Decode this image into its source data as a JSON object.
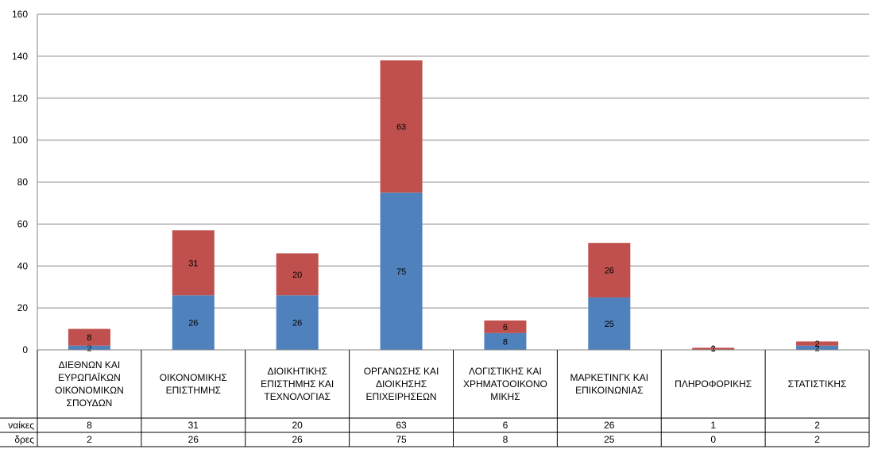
{
  "chart_data": {
    "type": "bar",
    "stacked": true,
    "categories": [
      [
        "ΔΙΕΘΝΩΝ ΚΑΙ",
        "ΕΥΡΩΠΑΪΚΩΝ",
        "ΟΙΚΟΝΟΜΙΚΩΝ",
        "ΣΠΟΥΔΩΝ"
      ],
      [
        "ΟΙΚΟΝΟΜΙΚΗΣ",
        "ΕΠΙΣΤΗΜΗΣ"
      ],
      [
        "ΔΙΟΙΚΗΤΙΚΗΣ",
        "ΕΠΙΣΤΗΜΗΣ ΚΑΙ",
        "ΤΕΧΝΟΛΟΓΙΑΣ"
      ],
      [
        "ΟΡΓΑΝΩΣΗΣ ΚΑΙ",
        "ΔΙΟΙΚΗΣΗΣ",
        "ΕΠΙΧΕΙΡΗΣΕΩΝ"
      ],
      [
        "ΛΟΓΙΣΤΙΚΗΣ ΚΑΙ",
        "ΧΡΗΜΑΤΟΟΙΚΟΝΟ",
        "ΜΙΚΗΣ"
      ],
      [
        "ΜΑΡΚΕΤΙΝΓΚ ΚΑΙ",
        "ΕΠΙΚΟΙΝΩΝΙΑΣ"
      ],
      [
        "ΠΛΗΡΟΦΟΡΙΚΗΣ"
      ],
      [
        "ΣΤΑΤΙΣΤΙΚΗΣ"
      ]
    ],
    "series": [
      {
        "name": "ναίκες",
        "color": "#C0504D",
        "values": [
          8,
          31,
          20,
          63,
          6,
          26,
          1,
          2
        ]
      },
      {
        "name": "δρες",
        "color": "#4F81BD",
        "values": [
          2,
          26,
          26,
          75,
          8,
          25,
          0,
          2
        ]
      }
    ],
    "stack_order": [
      "δρες",
      "ναίκες"
    ],
    "yticks": [
      0,
      20,
      40,
      60,
      80,
      100,
      120,
      140,
      160
    ],
    "ylim": [
      0,
      160
    ],
    "grid": true,
    "legend": "data-table-below"
  }
}
